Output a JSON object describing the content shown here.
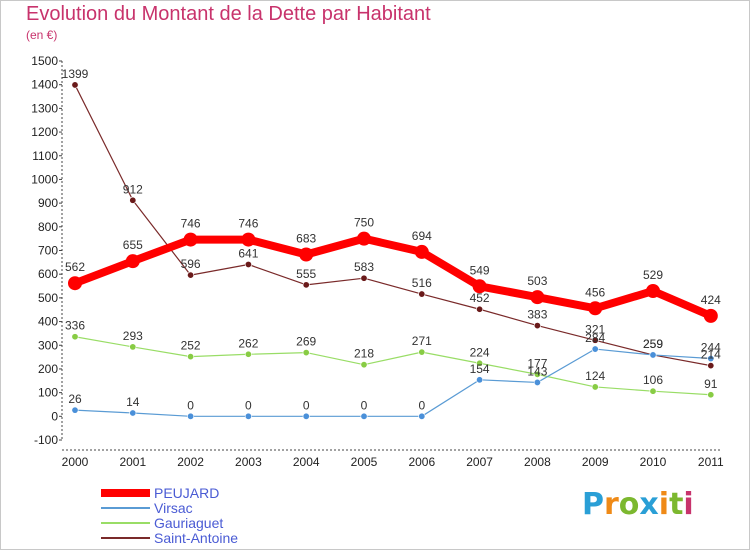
{
  "title": "Evolution du Montant de la Dette par Habitant",
  "subtitle": "(en €)",
  "logo_text": "Proxiti",
  "chart_data": {
    "type": "line",
    "x": [
      "2000",
      "2001",
      "2002",
      "2003",
      "2004",
      "2005",
      "2006",
      "2007",
      "2008",
      "2009",
      "2010",
      "2011"
    ],
    "ylim": [
      -100,
      1500
    ],
    "yticks": [
      "-100",
      "0",
      "100",
      "200",
      "300",
      "400",
      "500",
      "600",
      "700",
      "800",
      "900",
      "1000",
      "1100",
      "1200",
      "1300",
      "1400",
      "1500"
    ],
    "grid": false,
    "legend_position": "bottom-left",
    "series": [
      {
        "name": "PEUJARD",
        "color": "#ff0000",
        "values": [
          562,
          655,
          746,
          746,
          683,
          750,
          694,
          549,
          503,
          456,
          529,
          424
        ]
      },
      {
        "name": "Virsac",
        "color": "#5a9bd4",
        "values": [
          26,
          14,
          0,
          0,
          0,
          0,
          0,
          154,
          143,
          284,
          259,
          244
        ]
      },
      {
        "name": "Gauriaguet",
        "color": "#99dd66",
        "values": [
          336,
          293,
          252,
          262,
          269,
          218,
          271,
          224,
          177,
          124,
          106,
          91
        ]
      },
      {
        "name": "Saint-Antoine",
        "color": "#7a2a2a",
        "values": [
          1399,
          912,
          596,
          641,
          555,
          583,
          516,
          452,
          383,
          321,
          259,
          214
        ]
      }
    ]
  }
}
